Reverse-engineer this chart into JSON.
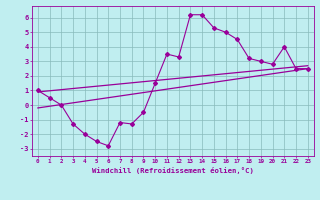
{
  "xlabel": "Windchill (Refroidissement éolien,°C)",
  "xlim": [
    -0.5,
    23.5
  ],
  "ylim": [
    -3.5,
    6.8
  ],
  "xticks": [
    0,
    1,
    2,
    3,
    4,
    5,
    6,
    7,
    8,
    9,
    10,
    11,
    12,
    13,
    14,
    15,
    16,
    17,
    18,
    19,
    20,
    21,
    22,
    23
  ],
  "yticks": [
    -3,
    -2,
    -1,
    0,
    1,
    2,
    3,
    4,
    5,
    6
  ],
  "background_color": "#c0eef0",
  "line_color": "#990099",
  "grid_color": "#88bbbb",
  "data_line": [
    [
      0,
      1.0
    ],
    [
      1,
      0.5
    ],
    [
      2,
      0.0
    ],
    [
      3,
      -1.3
    ],
    [
      4,
      -2.0
    ],
    [
      5,
      -2.5
    ],
    [
      6,
      -2.8
    ],
    [
      7,
      -1.2
    ],
    [
      8,
      -1.3
    ],
    [
      9,
      -0.5
    ],
    [
      10,
      1.5
    ],
    [
      11,
      3.5
    ],
    [
      12,
      3.3
    ],
    [
      13,
      6.2
    ],
    [
      14,
      6.2
    ],
    [
      15,
      5.3
    ],
    [
      16,
      5.0
    ],
    [
      17,
      4.5
    ],
    [
      18,
      3.2
    ],
    [
      19,
      3.0
    ],
    [
      20,
      2.8
    ],
    [
      21,
      4.0
    ],
    [
      22,
      2.5
    ],
    [
      23,
      2.5
    ]
  ],
  "trend_line1": [
    [
      0,
      0.9
    ],
    [
      23,
      2.7
    ]
  ],
  "trend_line2": [
    [
      0,
      -0.2
    ],
    [
      23,
      2.5
    ]
  ]
}
